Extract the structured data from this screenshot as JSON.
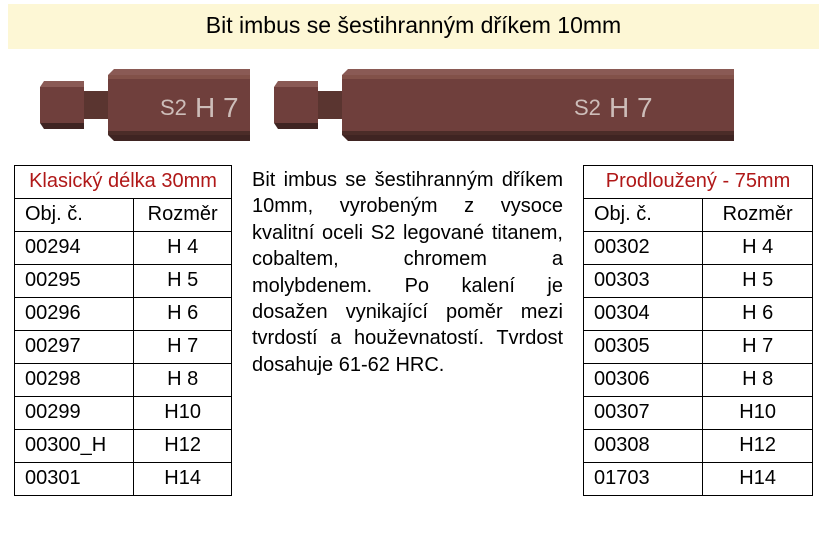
{
  "title": "Bit imbus se šestihranným dříkem 10mm",
  "bit_short": {
    "marking_s2": "S2",
    "marking_size": "H 7",
    "body_color": "#6f3f3c",
    "edge_color": "#3f2422",
    "text_color": "#cdbdb9"
  },
  "bit_long": {
    "marking_s2": "S2",
    "marking_size": "H 7",
    "body_color": "#6f3f3c",
    "edge_color": "#3f2422",
    "text_color": "#cdbdb9"
  },
  "left_table": {
    "title": "Klasický délka 30mm",
    "header_a": "Obj. č.",
    "header_b": "Rozměr",
    "rows": [
      {
        "a": "00294",
        "b": "H 4"
      },
      {
        "a": "00295",
        "b": "H 5"
      },
      {
        "a": "00296",
        "b": "H 6"
      },
      {
        "a": "00297",
        "b": "H 7"
      },
      {
        "a": "00298",
        "b": "H 8"
      },
      {
        "a": "00299",
        "b": "H10"
      },
      {
        "a": "00300_H",
        "b": "H12"
      },
      {
        "a": "00301",
        "b": "H14"
      }
    ]
  },
  "description": "Bit imbus se šestihranným dříkem 10mm, vyrobeným z vysoce kvalitní oceli S2 legované titanem, cobaltem, chromem a molybdenem. Po kalení je dosažen vynikající poměr mezi tvrdostí a houževnatostí. Tvrdost dosahuje 61-62 HRC.",
  "right_table": {
    "title": "Prodloužený - 75mm",
    "header_a": "Obj. č.",
    "header_b": "Rozměr",
    "rows": [
      {
        "a": "00302",
        "b": "H 4"
      },
      {
        "a": "00303",
        "b": "H 5"
      },
      {
        "a": "00304",
        "b": "H 6"
      },
      {
        "a": "00305",
        "b": "H 7"
      },
      {
        "a": "00306",
        "b": "H 8"
      },
      {
        "a": "00307",
        "b": "H10"
      },
      {
        "a": "00308",
        "b": "H12"
      },
      {
        "a": "01703",
        "b": "H14"
      }
    ]
  },
  "colors": {
    "title_bg": "#fdf7d5",
    "header_text": "#b01818",
    "border": "#000000"
  }
}
